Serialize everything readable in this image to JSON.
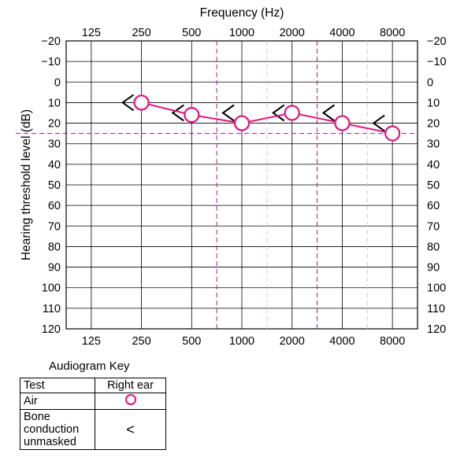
{
  "chart_data": {
    "type": "line",
    "x_title": "Frequency (Hz)",
    "y_title": "Hearing threshold level (dB)",
    "x_categories": [
      "125",
      "250",
      "500",
      "1000",
      "2000",
      "4000",
      "8000"
    ],
    "y_ticks": [
      "−20",
      "−10",
      "0",
      "10",
      "20",
      "30",
      "40",
      "50",
      "60",
      "70",
      "80",
      "90",
      "100",
      "110",
      "120"
    ],
    "ylim": [
      -20,
      120
    ],
    "y_inverted": true,
    "grid": true,
    "reference_line_db": 25,
    "series": [
      {
        "name": "Air",
        "symbol": "circle",
        "color": "#e0157f",
        "x": [
          "250",
          "500",
          "1000",
          "2000",
          "4000",
          "8000"
        ],
        "values": [
          10,
          16,
          20,
          15,
          20,
          25
        ]
      },
      {
        "name": "Bone conduction unmasked",
        "symbol": "<",
        "color": "#000000",
        "x": [
          "250",
          "500",
          "1000",
          "2000",
          "4000",
          "8000"
        ],
        "values": [
          10,
          15,
          15,
          15,
          15,
          20
        ]
      }
    ]
  },
  "key": {
    "title": "Audiogram Key",
    "header_test": "Test",
    "header_ear": "Right ear",
    "row_air": "Air",
    "row_bone_1": "Bone",
    "row_bone_2": "conduction",
    "row_bone_3": "unmasked",
    "bone_symbol": "<"
  },
  "colors": {
    "air": "#e0157f",
    "bone": "#000000",
    "interoctave_line": "#a0208c"
  }
}
